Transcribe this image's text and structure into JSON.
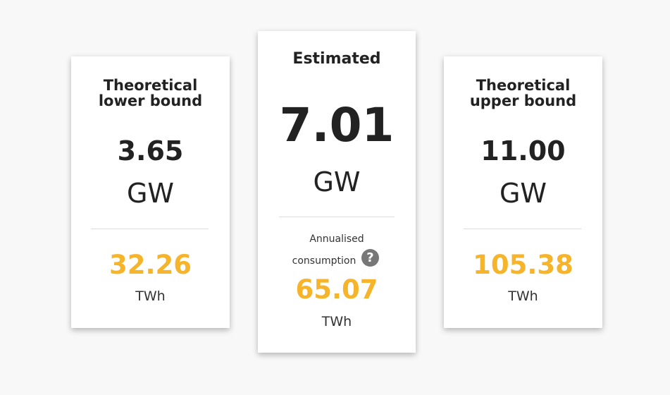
{
  "cards": {
    "lower": {
      "title_line1": "Theoretical",
      "title_line2": "lower bound",
      "power_value": "3.65",
      "power_unit": "GW",
      "energy_value": "32.26",
      "energy_unit": "TWh"
    },
    "estimated": {
      "title": "Estimated",
      "power_value": "7.01",
      "power_unit": "GW",
      "annual_line1": "Annualised",
      "annual_line2": "consumption",
      "help_glyph": "?",
      "energy_value": "65.07",
      "energy_unit": "TWh"
    },
    "upper": {
      "title_line1": "Theoretical",
      "title_line2": "upper bound",
      "power_value": "11.00",
      "power_unit": "GW",
      "energy_value": "105.38",
      "energy_unit": "TWh"
    }
  },
  "colors": {
    "accent": "#f6b42a",
    "text": "#222222",
    "background": "#f8f8f8",
    "card": "#ffffff",
    "help_icon": "#777777"
  }
}
